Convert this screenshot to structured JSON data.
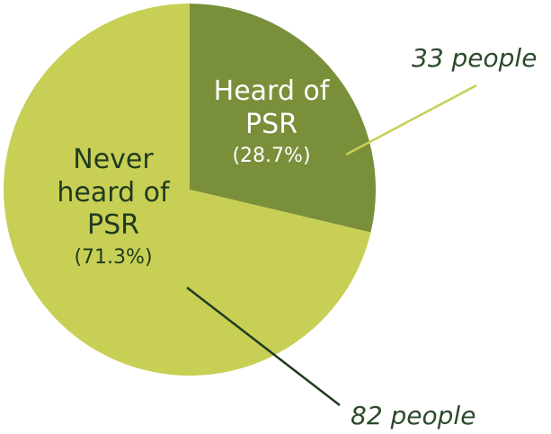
{
  "chart_data": {
    "type": "pie",
    "title": "",
    "slices": [
      {
        "label": "Heard of PSR",
        "percent_label": "(28.7%)",
        "value": 33,
        "percent": 28.7,
        "count_label": "33 people",
        "color": "#7a8f3a"
      },
      {
        "label": "Never heard of PSR",
        "percent_label": "(71.3%)",
        "value": 82,
        "percent": 71.3,
        "count_label": "82 people",
        "color": "#c8cf55"
      }
    ],
    "leader_colors": [
      "#c8cf55",
      "#1f3a1f"
    ]
  }
}
